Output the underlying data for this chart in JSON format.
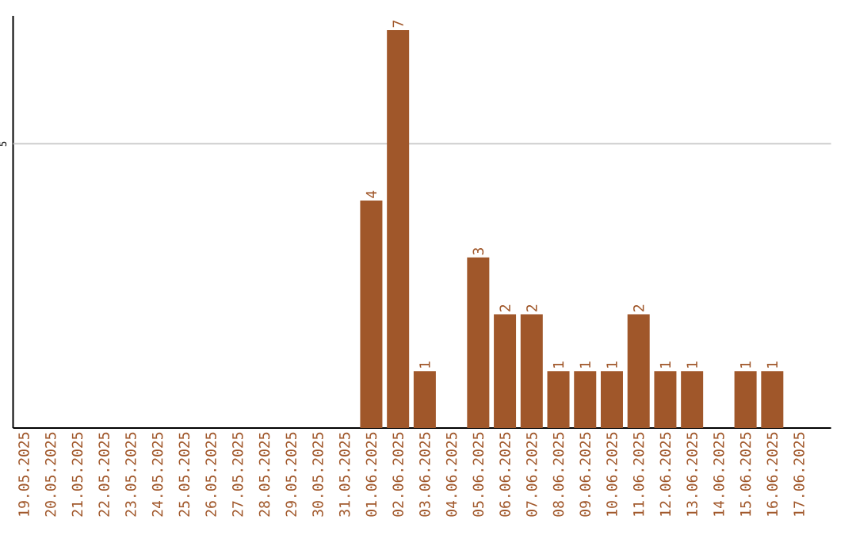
{
  "chart_data": {
    "type": "bar",
    "categories": [
      "19.05.2025",
      "20.05.2025",
      "21.05.2025",
      "22.05.2025",
      "23.05.2025",
      "24.05.2025",
      "25.05.2025",
      "26.05.2025",
      "27.05.2025",
      "28.05.2025",
      "29.05.2025",
      "30.05.2025",
      "31.05.2025",
      "01.06.2025",
      "02.06.2025",
      "03.06.2025",
      "04.06.2025",
      "05.06.2025",
      "06.06.2025",
      "07.06.2025",
      "08.06.2025",
      "09.06.2025",
      "10.06.2025",
      "11.06.2025",
      "12.06.2025",
      "13.06.2025",
      "14.06.2025",
      "15.06.2025",
      "16.06.2025",
      "17.06.2025"
    ],
    "values": [
      null,
      null,
      null,
      null,
      null,
      null,
      null,
      null,
      null,
      null,
      null,
      null,
      null,
      4,
      7,
      1,
      null,
      3,
      2,
      2,
      1,
      1,
      1,
      2,
      1,
      1,
      null,
      1,
      1,
      null
    ],
    "data_labels": true,
    "legend": false,
    "color": "#a0572a",
    "ylim": [
      0,
      7.25
    ],
    "ref_lines": [
      {
        "axis": "y",
        "value": 5,
        "label": "5",
        "color": "#c8c8c8"
      }
    ]
  }
}
